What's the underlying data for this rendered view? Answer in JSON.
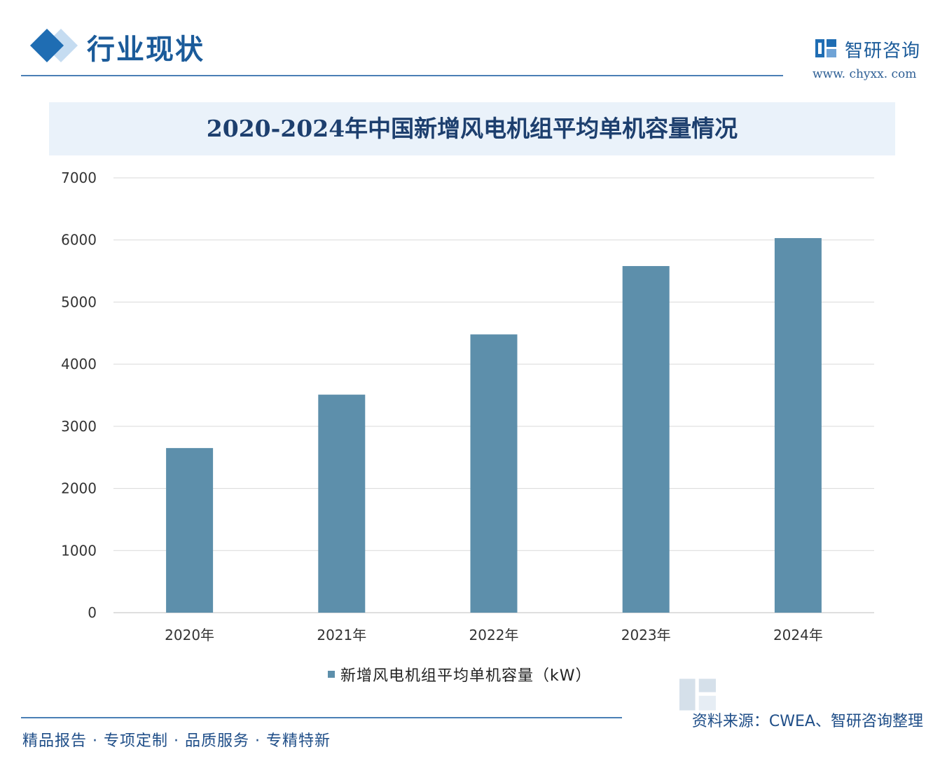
{
  "header": {
    "title": "行业现状",
    "brand_name": "智研咨询",
    "brand_url": "www. chyxx. com"
  },
  "chart_data": {
    "type": "bar",
    "title": "2020-2024年中国新增风电机组平均单机容量情况",
    "categories": [
      "2020年",
      "2021年",
      "2022年",
      "2023年",
      "2024年"
    ],
    "series": [
      {
        "name": "新增风电机组平均单机容量（kW）",
        "values": [
          2650,
          3510,
          4480,
          5580,
          6030
        ]
      }
    ],
    "ylim": [
      0,
      7000
    ],
    "yticks": [
      0,
      1000,
      2000,
      3000,
      4000,
      5000,
      6000,
      7000
    ],
    "grid": true,
    "legend_position": "bottom",
    "colors": {
      "bar": "#5d8fab",
      "grid": "#d9d9d9"
    }
  },
  "footer": {
    "source": "资料来源：CWEA、智研咨询整理",
    "slogan": "精品报告 · 专项定制 · 品质服务 · 专精特新"
  },
  "icons": {
    "brand_logo": "chyxx-logo-icon"
  }
}
